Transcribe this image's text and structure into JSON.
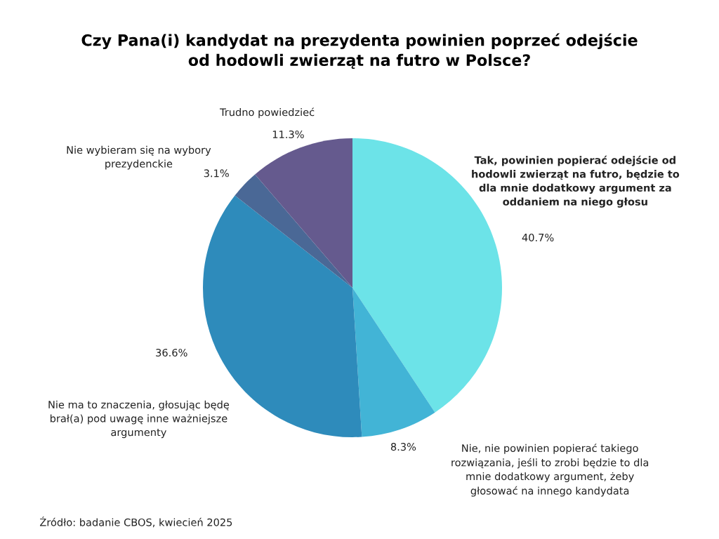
{
  "chart_data": {
    "type": "pie",
    "title": "Czy Pana(i) kandydat na prezydenta powinien poprzeć odejście\nod hodowli zwierząt na futro w Polsce?",
    "categories": [
      "Tak, powinien popierać odejście od\nhodowli zwierząt na futro, będzie to\ndla mnie dodatkowy argument za\noddaniem na niego głosu",
      "Nie, nie powinien popierać takiego\nrozwiązania, jeśli to zrobi będzie to dla\nmnie dodatkowy argument, żeby\ngłosować na innego kandydata",
      "Nie ma to znaczenia, głosując będę\nbrał(a) pod uwagę inne ważniejsze\nargumenty",
      "Nie wybieram się na wybory\nprezydenckie",
      "Trudno powiedzieć"
    ],
    "values": [
      40.7,
      8.3,
      36.6,
      3.1,
      11.3
    ],
    "colors": [
      "#6ce3e8",
      "#42b4d6",
      "#2e8bbb",
      "#4a6896",
      "#655a8e"
    ],
    "value_labels": [
      "40.7%",
      "8.3%",
      "36.6%",
      "3.1%",
      "11.3%"
    ],
    "annotations": [
      "Źródło: badanie CBOS, kwiecień 2025"
    ]
  }
}
